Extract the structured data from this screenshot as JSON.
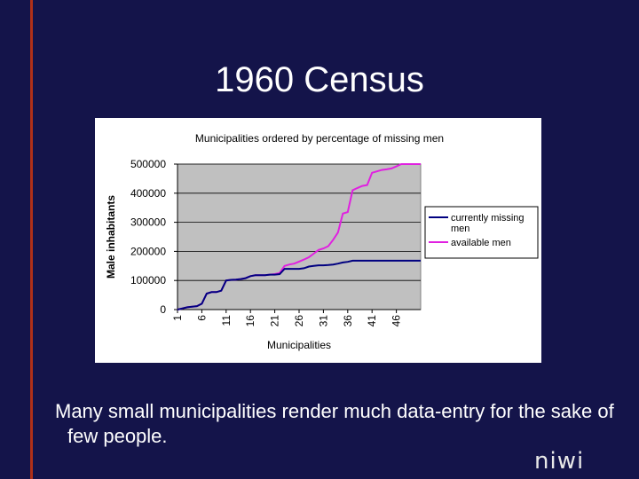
{
  "slide": {
    "title": "1960 Census",
    "caption": "Many small municipalities render much data-entry for the sake of few people.",
    "logo_text": "niwi",
    "colors": {
      "background": "#14144a",
      "accent_rule": "#b03018",
      "plot_area": "#c0c0c0"
    }
  },
  "chart_data": {
    "type": "line",
    "title": "Municipalities ordered by percentage of missing men",
    "xlabel": "Municipalities",
    "ylabel": "Male inhabitants",
    "x_ticks": [
      "1",
      "6",
      "11",
      "16",
      "21",
      "26",
      "31",
      "36",
      "41",
      "46"
    ],
    "x_range": [
      1,
      51
    ],
    "ylim": [
      0,
      500000
    ],
    "y_ticks": [
      "0",
      "100000",
      "200000",
      "300000",
      "400000",
      "500000"
    ],
    "grid": "horizontal",
    "legend_position": "right",
    "series": [
      {
        "name": "currently missing men",
        "color": "#000080",
        "x": [
          1,
          2,
          3,
          4,
          5,
          6,
          7,
          8,
          9,
          10,
          11,
          12,
          13,
          14,
          15,
          16,
          17,
          18,
          19,
          20,
          21,
          22,
          23,
          24,
          25,
          26,
          27,
          28,
          29,
          30,
          31,
          32,
          33,
          34,
          35,
          36,
          37,
          38,
          39,
          40,
          41,
          42,
          43,
          44,
          45,
          46,
          47,
          48,
          49,
          50,
          51
        ],
        "y": [
          0,
          4000,
          8000,
          10000,
          12000,
          20000,
          55000,
          60000,
          60000,
          65000,
          100000,
          102000,
          103000,
          105000,
          108000,
          115000,
          118000,
          118000,
          118000,
          120000,
          120000,
          122000,
          140000,
          140000,
          140000,
          140000,
          142000,
          148000,
          150000,
          152000,
          152000,
          153000,
          155000,
          158000,
          162000,
          164000,
          168000,
          168000,
          168000,
          168000,
          168000,
          168000,
          168000,
          168000,
          168000,
          168000,
          168000,
          168000,
          168000,
          168000,
          168000
        ]
      },
      {
        "name": "available men",
        "color": "#e020e0",
        "x": [
          1,
          2,
          3,
          4,
          5,
          6,
          7,
          8,
          9,
          10,
          11,
          12,
          13,
          14,
          15,
          16,
          17,
          18,
          19,
          20,
          21,
          22,
          23,
          24,
          25,
          26,
          27,
          28,
          29,
          30,
          31,
          32,
          33,
          34,
          35,
          36,
          37,
          38,
          39,
          40,
          41,
          42,
          43,
          44,
          45,
          46,
          47,
          48,
          49,
          50,
          51
        ],
        "y": [
          0,
          4000,
          8000,
          10000,
          12000,
          20000,
          55000,
          60000,
          60000,
          65000,
          100000,
          102000,
          103000,
          105000,
          108000,
          115000,
          118000,
          118000,
          118000,
          120000,
          122000,
          126000,
          150000,
          155000,
          158000,
          165000,
          172000,
          180000,
          192000,
          205000,
          210000,
          218000,
          240000,
          265000,
          330000,
          335000,
          410000,
          418000,
          425000,
          428000,
          470000,
          475000,
          480000,
          482000,
          485000,
          492000,
          500000,
          500000,
          500000,
          500000,
          500000
        ]
      }
    ]
  }
}
